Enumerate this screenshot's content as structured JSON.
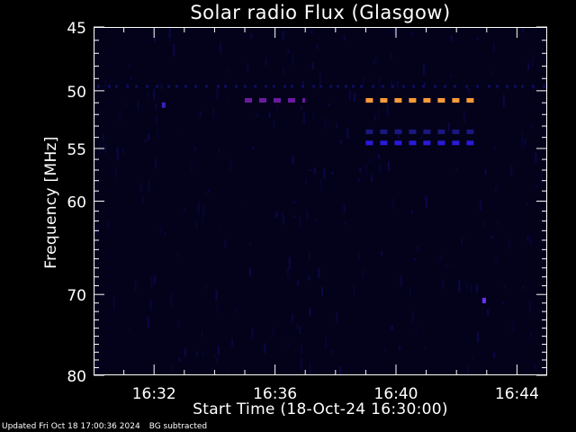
{
  "chart_data": {
    "type": "heatmap",
    "title": "Solar radio Flux (Glasgow)",
    "xlabel": "Start Time (18-Oct-24 16:30:00)",
    "ylabel": "Frequency [MHz]",
    "x_range_minutes": [
      "16:30",
      "16:45"
    ],
    "x_ticks": [
      "16:32",
      "16:36",
      "16:40",
      "16:44"
    ],
    "y_range_mhz": [
      80,
      45
    ],
    "y_scale": "log",
    "y_ticks": [
      "45",
      "50",
      "55",
      "60",
      "70",
      "80"
    ],
    "background_color": "#03021a",
    "features": [
      {
        "time_start": "16:35.0",
        "time_end": "16:37.0",
        "freq_mhz": 50.8,
        "intensity": "medium",
        "color": "#6a1aa0"
      },
      {
        "time_start": "16:39.0",
        "time_end": "16:42.8",
        "freq_mhz": 50.8,
        "intensity": "high",
        "color": "#ff9a3a"
      },
      {
        "time_start": "16:39.0",
        "time_end": "16:42.8",
        "freq_mhz": 53.5,
        "intensity": "low",
        "color": "#1a1880"
      },
      {
        "time_start": "16:39.0",
        "time_end": "16:42.8",
        "freq_mhz": 54.5,
        "intensity": "low-medium",
        "color": "#2a1ad8"
      },
      {
        "time_start": "16:32.3",
        "time_end": "16:32.3",
        "freq_mhz": 51.2,
        "intensity": "low",
        "color": "#3a20c0"
      },
      {
        "time_start": "16:42.9",
        "time_end": "16:42.9",
        "freq_mhz": 70.7,
        "intensity": "medium",
        "color": "#6a30ff"
      }
    ]
  },
  "footer": {
    "updated": "Updated Fri Oct 18 17:00:36 2024",
    "bg_note": "BG subtracted"
  }
}
